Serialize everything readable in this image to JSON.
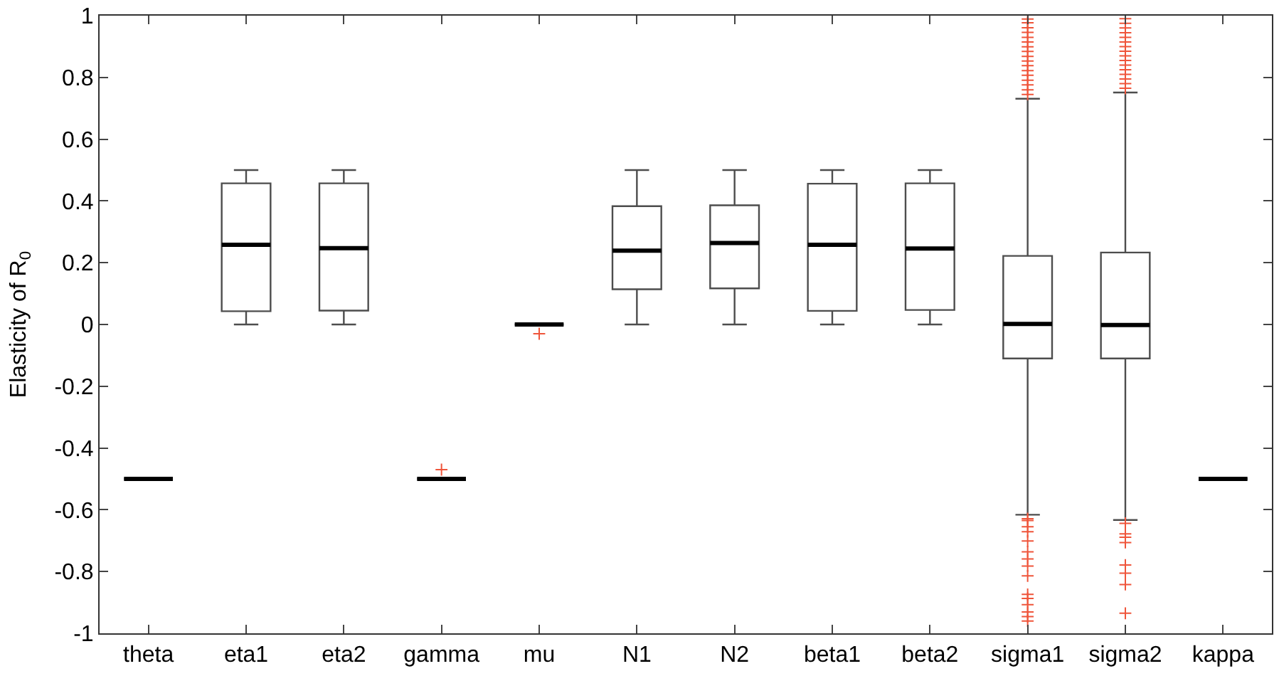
{
  "chart_data": {
    "type": "box",
    "ylabel": "Elasticity of R$_{0}$",
    "categories": [
      "theta",
      "eta1",
      "eta2",
      "gamma",
      "mu",
      "N1",
      "N2",
      "beta1",
      "beta2",
      "sigma1",
      "sigma2",
      "kappa"
    ],
    "boxes": [
      {
        "low": -0.5,
        "q1": -0.5,
        "median": -0.5,
        "q3": -0.5,
        "high": -0.5
      },
      {
        "low": 0,
        "q1": 0.043,
        "median": 0.258,
        "q3": 0.457,
        "high": 0.5
      },
      {
        "low": 0,
        "q1": 0.045,
        "median": 0.247,
        "q3": 0.457,
        "high": 0.5
      },
      {
        "low": -0.5,
        "q1": -0.5,
        "median": -0.5,
        "q3": -0.5,
        "high": -0.5,
        "outliers": [
          -0.47
        ]
      },
      {
        "low": 0,
        "q1": 0,
        "median": 0,
        "q3": 0,
        "high": 0,
        "outliers": [
          -0.03
        ]
      },
      {
        "low": 0,
        "q1": 0.114,
        "median": 0.239,
        "q3": 0.383,
        "high": 0.5
      },
      {
        "low": 0,
        "q1": 0.117,
        "median": 0.264,
        "q3": 0.386,
        "high": 0.5
      },
      {
        "low": 0,
        "q1": 0.044,
        "median": 0.258,
        "q3": 0.456,
        "high": 0.5
      },
      {
        "low": 0,
        "q1": 0.047,
        "median": 0.246,
        "q3": 0.457,
        "high": 0.5
      },
      {
        "low": -0.616,
        "q1": -0.11,
        "median": 0.002,
        "q3": 0.222,
        "high": 0.731,
        "outliers": [
          0.989,
          0.977,
          0.961,
          0.946,
          0.93,
          0.915,
          0.899,
          0.884,
          0.868,
          0.853,
          0.838,
          0.822,
          0.807,
          0.791,
          0.776,
          0.76,
          0.745,
          -0.629,
          -0.635,
          -0.655,
          -0.671,
          -0.701,
          -0.736,
          -0.759,
          -0.782,
          -0.814,
          -0.874,
          -0.887,
          -0.907,
          -0.931,
          -0.946,
          -0.96
        ]
      },
      {
        "low": -0.633,
        "q1": -0.11,
        "median": -0.002,
        "q3": 0.233,
        "high": 0.751,
        "outliers": [
          0.99,
          0.975,
          0.96,
          0.945,
          0.93,
          0.915,
          0.9,
          0.885,
          0.87,
          0.855,
          0.84,
          0.825,
          0.81,
          0.795,
          0.78,
          0.765,
          -0.644,
          -0.678,
          -0.689,
          -0.706,
          -0.779,
          -0.805,
          -0.842,
          -0.935
        ]
      },
      {
        "low": -0.5,
        "q1": -0.5,
        "median": -0.5,
        "q3": -0.5,
        "high": -0.5
      }
    ],
    "color": "#4d4d4d",
    "ylim": [
      -1,
      1
    ],
    "yticks": [
      -1,
      -0.8,
      -0.6,
      -0.4,
      -0.2,
      0,
      0.2,
      0.4,
      0.6,
      0.8,
      1
    ]
  }
}
